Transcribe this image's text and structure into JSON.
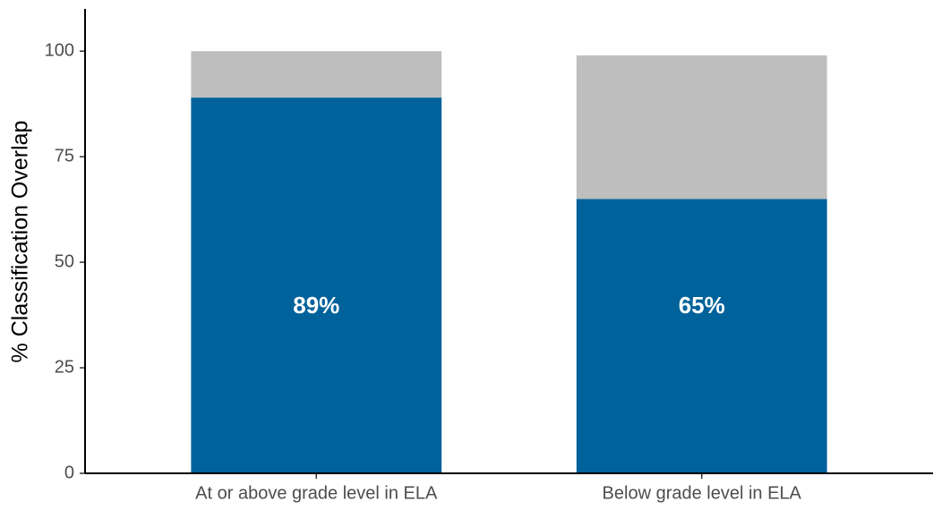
{
  "chart_data": {
    "type": "stacked-bar",
    "y_label": "% Classification Overlap",
    "categories": [
      "At or above grade level in ELA",
      "Below grade level in ELA"
    ],
    "series": [
      {
        "color": "#00629b",
        "values": [
          89,
          65
        ],
        "value_labels": [
          "89%",
          "65%"
        ]
      },
      {
        "color": "#bebebe",
        "values": [
          11,
          34
        ]
      }
    ],
    "ylim": [
      0,
      110
    ],
    "yticks": [
      0,
      25,
      50,
      75,
      100
    ],
    "grid": false
  }
}
